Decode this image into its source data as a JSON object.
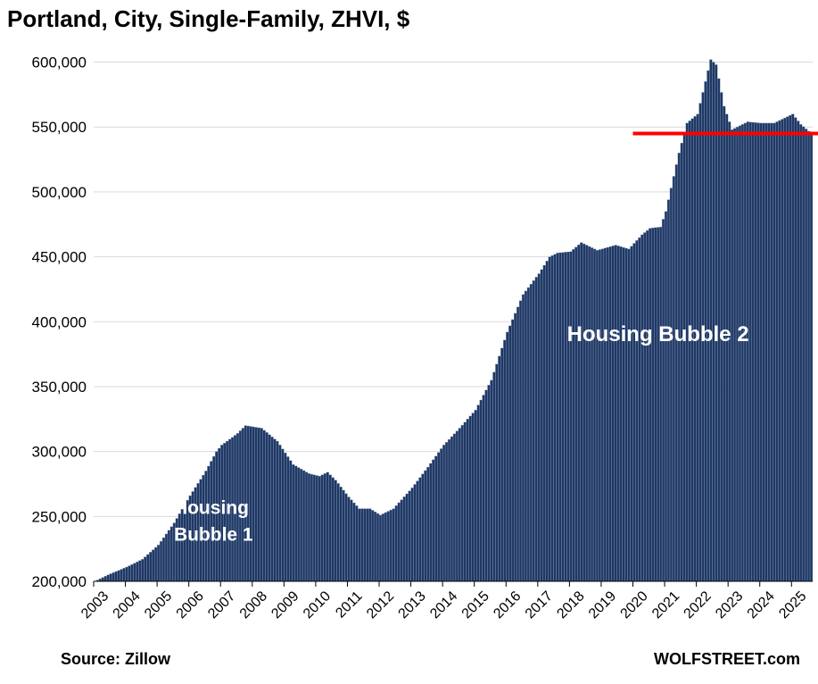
{
  "title": "Portland, City, Single-Family, ZHVI, $",
  "source": "Source: Zillow",
  "brand": "WOLFSTREET.com",
  "colors": {
    "bar_fill": "#1f3864",
    "bar_edge": "#95a7c4",
    "reference_line": "#ff0000",
    "grid": "#d9d9d9"
  },
  "chart_data": {
    "type": "bar",
    "title": "Portland, City, Single-Family, ZHVI, $",
    "xlabel": "",
    "ylabel": "",
    "ylim": [
      200000,
      610000
    ],
    "yticks": [
      200000,
      250000,
      300000,
      350000,
      400000,
      450000,
      500000,
      550000,
      600000
    ],
    "ytick_labels": [
      "200,000",
      "250,000",
      "300,000",
      "350,000",
      "400,000",
      "450,000",
      "500,000",
      "550,000",
      "600,000"
    ],
    "x_start": "2003-01",
    "x_end": "2025-08",
    "xtick_labels": [
      "2003",
      "2004",
      "2005",
      "2006",
      "2007",
      "2008",
      "2009",
      "2010",
      "2011",
      "2012",
      "2013",
      "2014",
      "2015",
      "2016",
      "2017",
      "2018",
      "2019",
      "2020",
      "2021",
      "2022",
      "2023",
      "2024",
      "2025"
    ],
    "grid": true,
    "monthly_keypoints": [
      [
        "2003-01",
        200000
      ],
      [
        "2003-06",
        205000
      ],
      [
        "2004-01",
        211000
      ],
      [
        "2004-07",
        217000
      ],
      [
        "2005-01",
        228000
      ],
      [
        "2005-07",
        245000
      ],
      [
        "2006-01",
        266000
      ],
      [
        "2006-07",
        285000
      ],
      [
        "2006-11",
        300000
      ],
      [
        "2007-01",
        305000
      ],
      [
        "2007-07",
        314000
      ],
      [
        "2007-10",
        320000
      ],
      [
        "2008-01",
        319000
      ],
      [
        "2008-04",
        318000
      ],
      [
        "2008-10",
        308000
      ],
      [
        "2009-04",
        290000
      ],
      [
        "2009-10",
        283000
      ],
      [
        "2010-02",
        281000
      ],
      [
        "2010-05",
        284000
      ],
      [
        "2010-08",
        278000
      ],
      [
        "2011-01",
        265000
      ],
      [
        "2011-05",
        256000
      ],
      [
        "2011-09",
        256000
      ],
      [
        "2012-01",
        251000
      ],
      [
        "2012-06",
        256000
      ],
      [
        "2013-01",
        272000
      ],
      [
        "2013-07",
        288000
      ],
      [
        "2014-01",
        305000
      ],
      [
        "2014-07",
        318000
      ],
      [
        "2015-01",
        332000
      ],
      [
        "2015-07",
        355000
      ],
      [
        "2016-01",
        392000
      ],
      [
        "2016-07",
        421000
      ],
      [
        "2017-01",
        437000
      ],
      [
        "2017-05",
        450000
      ],
      [
        "2017-08",
        453000
      ],
      [
        "2018-01",
        454000
      ],
      [
        "2018-05",
        461000
      ],
      [
        "2018-11",
        455000
      ],
      [
        "2019-06",
        459000
      ],
      [
        "2019-11",
        456000
      ],
      [
        "2020-04",
        467000
      ],
      [
        "2020-07",
        472000
      ],
      [
        "2020-11",
        473000
      ],
      [
        "2021-01",
        485000
      ],
      [
        "2021-06",
        530000
      ],
      [
        "2021-09",
        553000
      ],
      [
        "2022-01",
        560000
      ],
      [
        "2022-04",
        585000
      ],
      [
        "2022-06",
        602000
      ],
      [
        "2022-08",
        598000
      ],
      [
        "2022-11",
        566000
      ],
      [
        "2023-02",
        548000
      ],
      [
        "2023-08",
        554000
      ],
      [
        "2024-01",
        553000
      ],
      [
        "2024-06",
        553000
      ],
      [
        "2025-01",
        560000
      ],
      [
        "2025-04",
        552000
      ],
      [
        "2025-08",
        545000
      ]
    ],
    "reference_line": {
      "y": 545000,
      "x_from": "2020-01",
      "x_to": "2025-08"
    },
    "annotations": [
      {
        "text_lines": [
          "Housing",
          "Bubble 1"
        ],
        "x": "2006-07",
        "y": 252000
      },
      {
        "text_lines": [
          "Housing Bubble 2"
        ],
        "x": "2020-10",
        "y": 385000
      }
    ]
  }
}
